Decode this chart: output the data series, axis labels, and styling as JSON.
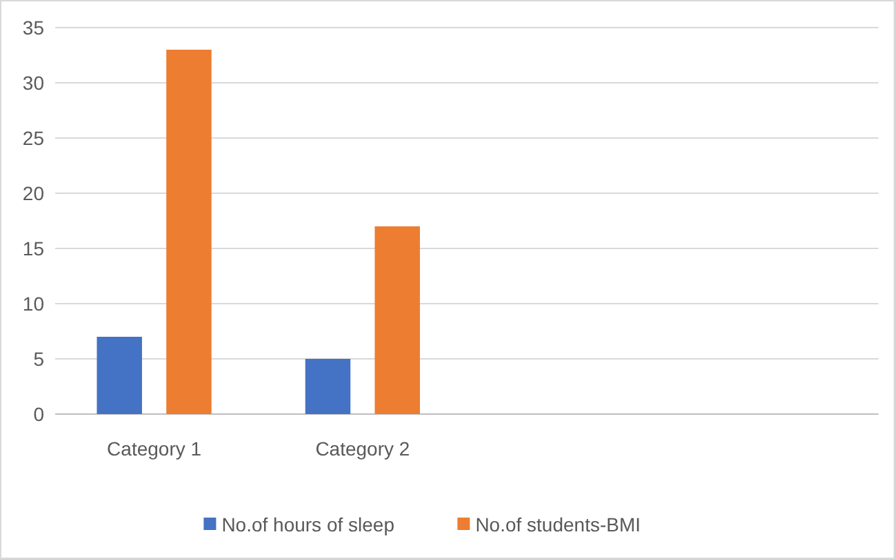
{
  "chart_data": {
    "type": "bar",
    "categories": [
      "Category 1",
      "Category 2",
      null,
      null
    ],
    "series": [
      {
        "name": "No.of hours of sleep",
        "color": "#4472c4",
        "values": [
          7,
          5,
          null,
          null
        ]
      },
      {
        "name": "No.of students-BMI",
        "color": "#ed7d31",
        "values": [
          33,
          17,
          null,
          null
        ]
      }
    ],
    "ylim": [
      0,
      35
    ],
    "yticks": [
      0,
      5,
      10,
      15,
      20,
      25,
      30,
      35
    ],
    "grid": "y",
    "legend": "bottom"
  }
}
